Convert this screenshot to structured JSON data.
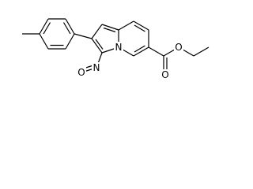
{
  "atom_labels": [
    "N",
    "N",
    "O",
    "O",
    "O"
  ]
}
